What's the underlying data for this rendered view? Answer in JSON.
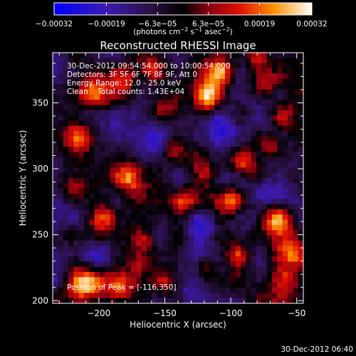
{
  "chart_data": {
    "type": "heatmap",
    "title": "Reconstructed RHESSI Image",
    "xlabel": "Heliocentric X (arcsec)",
    "ylabel": "Heliocentric Y (arcsec)",
    "xlim": [
      -235,
      -45
    ],
    "ylim": [
      198,
      388
    ],
    "x_ticks": [
      {
        "value": -200,
        "label": "−200"
      },
      {
        "value": -150,
        "label": "−150"
      },
      {
        "value": -100,
        "label": "−100"
      },
      {
        "value": -50,
        "label": "−50"
      }
    ],
    "y_ticks": [
      {
        "value": 200,
        "label": "200"
      },
      {
        "value": 250,
        "label": "250"
      },
      {
        "value": 300,
        "label": "300"
      },
      {
        "value": 350,
        "label": "350"
      }
    ],
    "colorbar": {
      "min": -0.00032,
      "max": 0.00032,
      "tick_labels": [
        {
          "value": -0.00032,
          "label": "−0.00032"
        },
        {
          "value": -0.00019,
          "label": "−0.00019"
        },
        {
          "value": -6.3e-05,
          "label": "−6.3e−05"
        },
        {
          "value": 6.3e-05,
          "label": "6.3e−05"
        },
        {
          "value": 0.00019,
          "label": "0.00019"
        },
        {
          "value": 0.00032,
          "label": "0.00032"
        }
      ],
      "units_prefix": "(photons cm",
      "units_exp1": "−2",
      "units_mid": " s",
      "units_exp2": "−1",
      "units_mid2": " asec",
      "units_exp3": "−2",
      "units_suffix": ")",
      "stops": [
        {
          "pos": 0.0,
          "color": "#0000ff"
        },
        {
          "pos": 0.2,
          "color": "#3c1ab4"
        },
        {
          "pos": 0.38,
          "color": "#2a1040"
        },
        {
          "pos": 0.5,
          "color": "#000000"
        },
        {
          "pos": 0.6,
          "color": "#8a0012"
        },
        {
          "pos": 0.72,
          "color": "#e01000"
        },
        {
          "pos": 0.85,
          "color": "#ff9000"
        },
        {
          "pos": 1.0,
          "color": "#ffffff"
        }
      ]
    },
    "annotations": [
      "30-Dec-2012 09:54:54.000 to 10:00:54.000",
      "Detectors: 3F 5F 6F 7F 8F 9F, Att 0",
      "Energy Range: 12.0 - 25.0 keV",
      "Clean    Total counts: 1.43E+04"
    ],
    "peak_label": "Position of Peak = [-116,350]",
    "peak_position": [
      -116,
      350
    ],
    "grid": false,
    "image_grid": {
      "nx": 48,
      "ny": 48,
      "background_value": -0.2,
      "blobs": [
        {
          "x": -117,
          "y": 355,
          "amp": 1.25,
          "sigma": 8
        },
        {
          "x": -108,
          "y": 373,
          "amp": 0.9,
          "sigma": 7
        },
        {
          "x": -205,
          "y": 358,
          "amp": 0.7,
          "sigma": 9
        },
        {
          "x": -180,
          "y": 368,
          "amp": 0.65,
          "sigma": 8
        },
        {
          "x": -160,
          "y": 376,
          "amp": 0.6,
          "sigma": 7
        },
        {
          "x": -150,
          "y": 346,
          "amp": 0.45,
          "sigma": 7
        },
        {
          "x": -215,
          "y": 325,
          "amp": 0.6,
          "sigma": 8
        },
        {
          "x": -176,
          "y": 293,
          "amp": 0.95,
          "sigma": 8
        },
        {
          "x": -143,
          "y": 316,
          "amp": 0.5,
          "sigma": 6
        },
        {
          "x": -120,
          "y": 296,
          "amp": 0.55,
          "sigma": 7
        },
        {
          "x": -90,
          "y": 305,
          "amp": 0.7,
          "sigma": 7
        },
        {
          "x": -70,
          "y": 318,
          "amp": 0.55,
          "sigma": 6
        },
        {
          "x": -60,
          "y": 340,
          "amp": 0.65,
          "sigma": 7
        },
        {
          "x": -75,
          "y": 365,
          "amp": 0.5,
          "sigma": 7
        },
        {
          "x": -80,
          "y": 383,
          "amp": 0.45,
          "sigma": 6
        },
        {
          "x": -220,
          "y": 285,
          "amp": 0.55,
          "sigma": 7
        },
        {
          "x": -195,
          "y": 262,
          "amp": 0.75,
          "sigma": 8
        },
        {
          "x": -220,
          "y": 250,
          "amp": 0.5,
          "sigma": 6
        },
        {
          "x": -165,
          "y": 245,
          "amp": 0.45,
          "sigma": 6
        },
        {
          "x": -135,
          "y": 275,
          "amp": 0.55,
          "sigma": 6
        },
        {
          "x": -100,
          "y": 275,
          "amp": 0.6,
          "sigma": 7
        },
        {
          "x": -65,
          "y": 260,
          "amp": 0.85,
          "sigma": 8
        },
        {
          "x": -55,
          "y": 240,
          "amp": 0.85,
          "sigma": 9
        },
        {
          "x": -60,
          "y": 215,
          "amp": 0.75,
          "sigma": 8
        },
        {
          "x": -210,
          "y": 212,
          "amp": 0.95,
          "sigma": 9
        },
        {
          "x": -185,
          "y": 210,
          "amp": 0.55,
          "sigma": 7
        },
        {
          "x": -150,
          "y": 215,
          "amp": 0.45,
          "sigma": 6
        },
        {
          "x": -118,
          "y": 225,
          "amp": 0.5,
          "sigma": 6
        },
        {
          "x": -95,
          "y": 235,
          "amp": 0.5,
          "sigma": 6
        },
        {
          "x": -170,
          "y": 228,
          "amp": 0.4,
          "sigma": 5
        },
        {
          "x": -205,
          "y": 340,
          "amp": -0.4,
          "sigma": 9
        },
        {
          "x": -105,
          "y": 330,
          "amp": -0.45,
          "sigma": 10
        },
        {
          "x": -160,
          "y": 320,
          "amp": -0.4,
          "sigma": 9
        },
        {
          "x": -120,
          "y": 255,
          "amp": -0.45,
          "sigma": 9
        },
        {
          "x": -200,
          "y": 237,
          "amp": -0.35,
          "sigma": 8
        },
        {
          "x": -75,
          "y": 285,
          "amp": -0.35,
          "sigma": 7
        },
        {
          "x": -130,
          "y": 205,
          "amp": -0.3,
          "sigma": 7
        }
      ],
      "noise_seed": 7,
      "noise_amp": 0.32
    }
  },
  "timestamp": "30-Dec-2012 06:40"
}
